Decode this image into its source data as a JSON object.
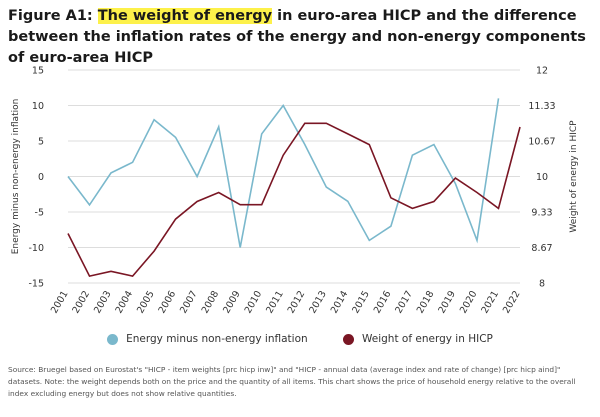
{
  "header": {
    "title_prefix": "Figure A1: ",
    "title_highlight": "The weight of energy",
    "title_rest": " in euro-area HICP and the difference between the inflation rates of the energy and non-energy components of euro-area HICP"
  },
  "colors": {
    "energy_diff": "#7ab8cc",
    "weight": "#7a1624",
    "highlight": "#fdf14a",
    "grid": "#dddddd"
  },
  "chart_data": {
    "type": "line",
    "x": [
      "2001",
      "2002",
      "2003",
      "2004",
      "2005",
      "2006",
      "2007",
      "2008",
      "2009",
      "2010",
      "2011",
      "2012",
      "2013",
      "2014",
      "2015",
      "2016",
      "2017",
      "2018",
      "2019",
      "2020",
      "2021",
      "2022"
    ],
    "yleft_label": "Energy minus non-energy inflation",
    "yright_label": "Weight of energy in HICP",
    "yleft_lim": [
      -15,
      15
    ],
    "yright_lim": [
      8,
      12
    ],
    "yleft_ticks": [
      "15",
      "10",
      "5",
      "0",
      "-5",
      "-10",
      "-15"
    ],
    "yright_ticks": [
      "12",
      "11.33",
      "10.67",
      "10",
      "9.33",
      "8.67",
      "8"
    ],
    "yright_tick_values": [
      12,
      11.33,
      10.67,
      10,
      9.33,
      8.67,
      8
    ],
    "grid": true,
    "legend_position": "bottom",
    "series": [
      {
        "name": "Energy minus non-energy inflation",
        "axis": "left",
        "values": [
          0,
          -4,
          0.5,
          2,
          8,
          5.5,
          0,
          7,
          -10,
          6,
          10,
          4.5,
          -1.5,
          -3.5,
          -9,
          -7,
          3,
          4.5,
          -1,
          -9,
          11,
          null
        ]
      },
      {
        "name": "Weight of energy in HICP",
        "axis": "right",
        "values": [
          8.93,
          8.13,
          8.22,
          8.13,
          8.6,
          9.2,
          9.53,
          9.7,
          9.47,
          9.47,
          10.4,
          11.0,
          11.0,
          10.8,
          10.6,
          9.6,
          9.4,
          9.53,
          9.97,
          9.7,
          9.4,
          10.93
        ]
      }
    ]
  },
  "source_text": "Source: Bruegel based on Eurostat's \"HICP - item weights [prc hicp inw]\" and \"HICP - annual data (average index and rate of change) [prc hicp aind]\" datasets. Note: the weight depends both on the price and the quantity of all items. This chart shows the price of household energy relative to the overall index excluding energy but does not show relative quantities."
}
